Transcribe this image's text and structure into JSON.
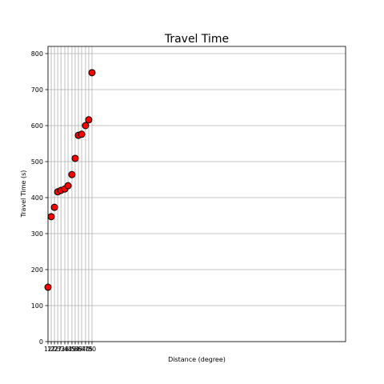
{
  "chart_data": {
    "type": "scatter",
    "title": "Travel Time",
    "x_label": "Distance (degree)",
    "y_label": "Travel Time (s)",
    "x": [
      12,
      17,
      22,
      27,
      32,
      38,
      43,
      49,
      54,
      59,
      64,
      70,
      75,
      80
    ],
    "values": [
      151,
      347,
      373,
      416,
      420,
      424,
      433,
      464,
      509,
      573,
      576,
      600,
      616,
      747
    ],
    "color": "#ff0000",
    "xlim": [
      12,
      472
    ],
    "xticks": [
      12,
      17,
      22,
      27,
      32,
      38,
      43,
      49,
      54,
      59,
      64,
      70,
      75,
      80
    ],
    "ylim": [
      0,
      820
    ],
    "yticks": [
      0,
      100,
      200,
      300,
      400,
      500,
      600,
      700,
      800
    ],
    "grid": true
  }
}
